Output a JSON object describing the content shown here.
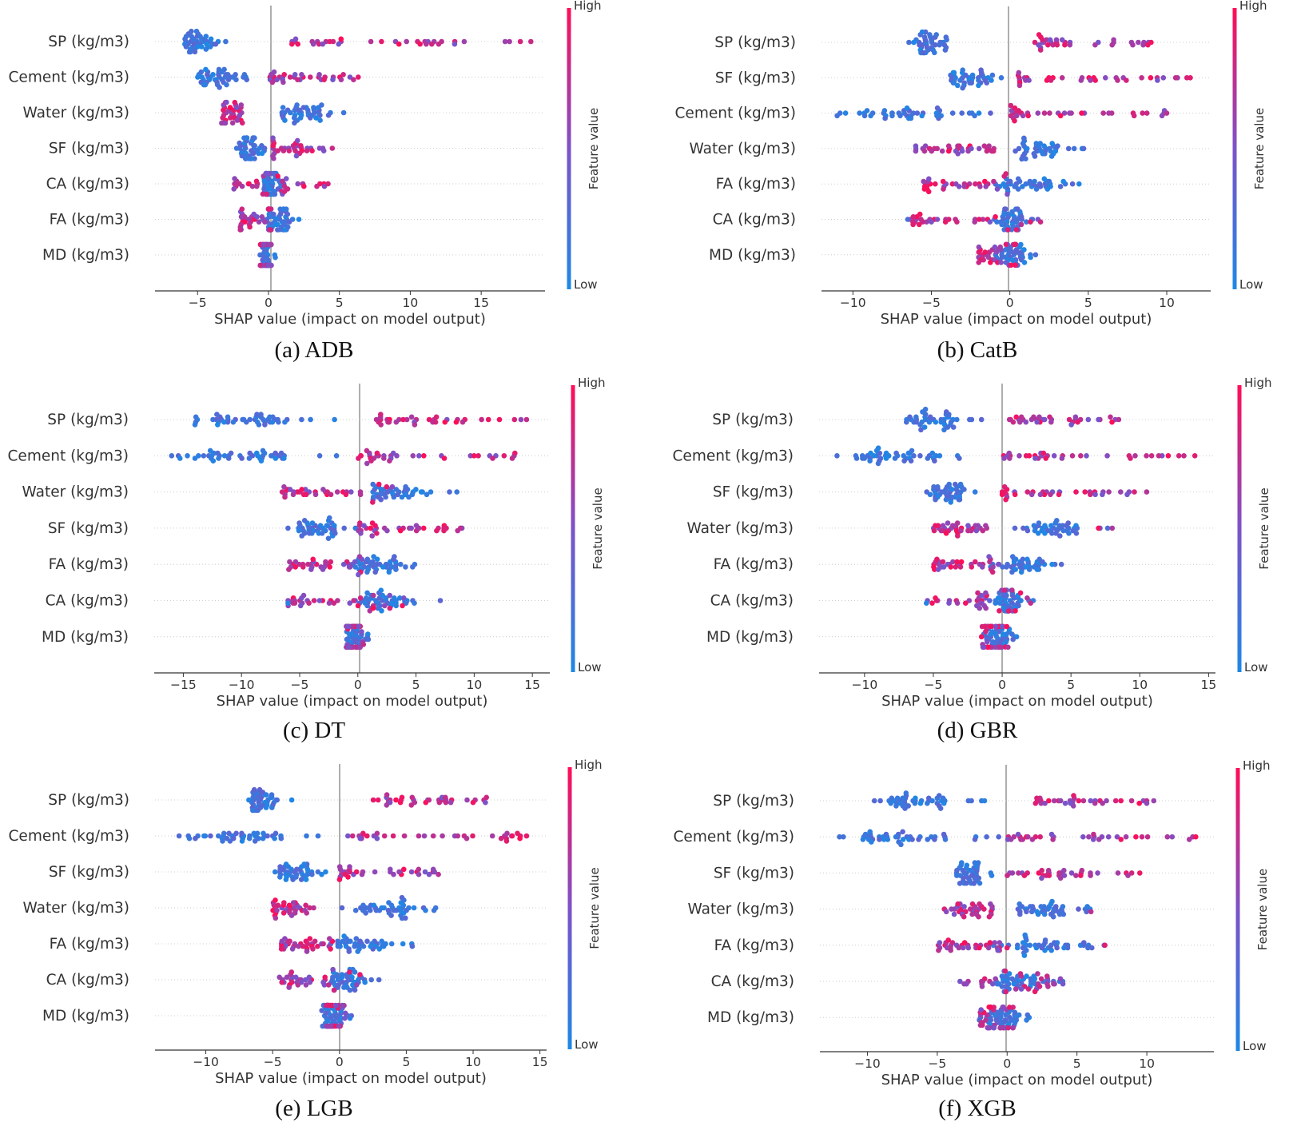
{
  "figure": {
    "colorbar": {
      "high_label": "High",
      "low_label": "Low",
      "title": "Feature value",
      "color_low": "#1e88e5",
      "color_mid": "#7c52c9",
      "color_high": "#ff0d57"
    }
  },
  "chart_data": [
    {
      "type": "scatter",
      "subtype": "shap-beeswarm",
      "caption": "(a) ADB",
      "xlabel": "SHAP value (impact on model output)",
      "xlim": [
        -8,
        19.5
      ],
      "xticks": [
        -5,
        0,
        5,
        10,
        15
      ],
      "tick_labels": [
        "−5",
        "0",
        "5",
        "10",
        "15"
      ],
      "features": [
        {
          "name": "SP (kg/m3)",
          "low_cluster": [
            -6.5,
            -3.0
          ],
          "high_range": [
            1,
            18.5
          ],
          "outliers": [
            17,
            18.5,
            12
          ]
        },
        {
          "name": "Cement (kg/m3)",
          "low_cluster": [
            -5.5,
            -1.5
          ],
          "high_range": [
            0,
            6.5
          ],
          "outliers": [
            6
          ]
        },
        {
          "name": "Water (kg/m3)",
          "low_cluster": [
            0.3,
            5.5
          ],
          "high_range": [
            -3.3,
            -1.7
          ],
          "outliers": []
        },
        {
          "name": "SF (kg/m3)",
          "low_cluster": [
            -2.5,
            -0.2
          ],
          "high_range": [
            0.3,
            4.5
          ],
          "outliers": [
            4.5
          ]
        },
        {
          "name": "CA (kg/m3)",
          "low_cluster": [
            -0.5,
            1.0
          ],
          "high_range": [
            -2.5,
            4.2
          ],
          "outliers": [
            4.2
          ]
        },
        {
          "name": "FA (kg/m3)",
          "low_cluster": [
            -0.5,
            2.5
          ],
          "high_range": [
            -2.0,
            0.3
          ],
          "outliers": []
        },
        {
          "name": "MD (kg/m3)",
          "low_cluster": [
            -0.6,
            0.5
          ],
          "high_range": [
            -0.6,
            0.2
          ],
          "outliers": []
        }
      ]
    },
    {
      "type": "scatter",
      "subtype": "shap-beeswarm",
      "caption": "(b) CatB",
      "xlabel": "SHAP value (impact on model output)",
      "xlim": [
        -12,
        12.8
      ],
      "xticks": [
        -10,
        -5,
        0,
        5,
        10
      ],
      "tick_labels": [
        "−10",
        "−5",
        "0",
        "5",
        "10"
      ],
      "features": [
        {
          "name": "SP (kg/m3)",
          "low_cluster": [
            -6.5,
            -3.5
          ],
          "high_range": [
            1.5,
            9
          ],
          "outliers": [
            9
          ]
        },
        {
          "name": "SF (kg/m3)",
          "low_cluster": [
            -4.3,
            -0.5
          ],
          "high_range": [
            0.5,
            11.5
          ],
          "outliers": [
            11.5
          ]
        },
        {
          "name": "Cement (kg/m3)",
          "low_cluster": [
            -11,
            -0.5
          ],
          "high_range": [
            0,
            10
          ],
          "outliers": [
            -11,
            -7.5,
            10
          ]
        },
        {
          "name": "Water (kg/m3)",
          "low_cluster": [
            0,
            4.8
          ],
          "high_range": [
            -6,
            -1
          ],
          "outliers": []
        },
        {
          "name": "FA (kg/m3)",
          "low_cluster": [
            -1,
            4.5
          ],
          "high_range": [
            -5.5,
            0
          ],
          "outliers": []
        },
        {
          "name": "CA (kg/m3)",
          "low_cluster": [
            -1,
            1.5
          ],
          "high_range": [
            -6.5,
            3.2
          ],
          "outliers": [
            -6.5
          ]
        },
        {
          "name": "MD (kg/m3)",
          "low_cluster": [
            -1,
            1.7
          ],
          "high_range": [
            -2,
            0.5
          ],
          "outliers": []
        }
      ]
    },
    {
      "type": "scatter",
      "subtype": "shap-beeswarm",
      "caption": "(c) DT",
      "xlabel": "SHAP value (impact on model output)",
      "xlim": [
        -17.5,
        16.5
      ],
      "xticks": [
        -15,
        -10,
        -5,
        0,
        5,
        10,
        15
      ],
      "tick_labels": [
        "−15",
        "−10",
        "−5",
        "0",
        "5",
        "10",
        "15"
      ],
      "features": [
        {
          "name": "SP (kg/m3)",
          "low_cluster": [
            -14,
            -2
          ],
          "high_range": [
            1.5,
            14.5
          ],
          "outliers": [
            -14,
            -11.5,
            14.5
          ]
        },
        {
          "name": "Cement (kg/m3)",
          "low_cluster": [
            -16,
            -1
          ],
          "high_range": [
            0,
            13.5
          ],
          "outliers": [
            -16,
            -14,
            13.5
          ]
        },
        {
          "name": "Water (kg/m3)",
          "low_cluster": [
            0,
            9
          ],
          "high_range": [
            -6.5,
            3
          ],
          "outliers": []
        },
        {
          "name": "SF (kg/m3)",
          "low_cluster": [
            -6,
            0
          ],
          "high_range": [
            0,
            9
          ],
          "outliers": [
            -6
          ]
        },
        {
          "name": "FA (kg/m3)",
          "low_cluster": [
            -1,
            5.5
          ],
          "high_range": [
            -6,
            0.5
          ],
          "outliers": []
        },
        {
          "name": "CA (kg/m3)",
          "low_cluster": [
            -1,
            7.5
          ],
          "high_range": [
            -6,
            4
          ],
          "outliers": [
            -6
          ]
        },
        {
          "name": "MD (kg/m3)",
          "low_cluster": [
            -1,
            1
          ],
          "high_range": [
            -1,
            0.5
          ],
          "outliers": []
        }
      ]
    },
    {
      "type": "scatter",
      "subtype": "shap-beeswarm",
      "caption": "(d) GBR",
      "xlabel": "SHAP value (impact on model output)",
      "xlim": [
        -13.3,
        15.5
      ],
      "xticks": [
        -10,
        -5,
        0,
        5,
        10,
        15
      ],
      "tick_labels": [
        "−10",
        "−5",
        "0",
        "5",
        "10",
        "15"
      ],
      "features": [
        {
          "name": "SP (kg/m3)",
          "low_cluster": [
            -7,
            -1.5
          ],
          "high_range": [
            0.5,
            8.5
          ],
          "outliers": []
        },
        {
          "name": "Cement (kg/m3)",
          "low_cluster": [
            -12,
            -0.5
          ],
          "high_range": [
            0,
            14
          ],
          "outliers": [
            -12,
            -9,
            14
          ]
        },
        {
          "name": "SF (kg/m3)",
          "low_cluster": [
            -5.5,
            -1.5
          ],
          "high_range": [
            0,
            10.5
          ],
          "outliers": [
            10.5
          ]
        },
        {
          "name": "Water (kg/m3)",
          "low_cluster": [
            0.5,
            8
          ],
          "high_range": [
            -5,
            -1
          ],
          "outliers": [
            7,
            8
          ]
        },
        {
          "name": "FA (kg/m3)",
          "low_cluster": [
            -1,
            4.5
          ],
          "high_range": [
            -5,
            0
          ],
          "outliers": []
        },
        {
          "name": "CA (kg/m3)",
          "low_cluster": [
            -1,
            2.5
          ],
          "high_range": [
            -5.5,
            2.5
          ],
          "outliers": [
            -5.5
          ]
        },
        {
          "name": "MD (kg/m3)",
          "low_cluster": [
            -1.5,
            1.5
          ],
          "high_range": [
            -1.5,
            0.5
          ],
          "outliers": []
        }
      ]
    },
    {
      "type": "scatter",
      "subtype": "shap-beeswarm",
      "caption": "(e) LGB",
      "xlabel": "SHAP value (impact on model output)",
      "xlim": [
        -13.8,
        15.5
      ],
      "xticks": [
        -10,
        -5,
        0,
        5,
        10,
        15
      ],
      "tick_labels": [
        "−10",
        "−5",
        "0",
        "5",
        "10",
        "15"
      ],
      "features": [
        {
          "name": "SP (kg/m3)",
          "low_cluster": [
            -7,
            -3.5
          ],
          "high_range": [
            2.5,
            11
          ],
          "outliers": [
            11
          ]
        },
        {
          "name": "Cement (kg/m3)",
          "low_cluster": [
            -12,
            -1
          ],
          "high_range": [
            0,
            14
          ],
          "outliers": [
            -12,
            14
          ]
        },
        {
          "name": "SF (kg/m3)",
          "low_cluster": [
            -5,
            -1
          ],
          "high_range": [
            0,
            7.5
          ],
          "outliers": []
        },
        {
          "name": "Water (kg/m3)",
          "low_cluster": [
            0,
            7.5
          ],
          "high_range": [
            -5,
            -1.5
          ],
          "outliers": []
        },
        {
          "name": "FA (kg/m3)",
          "low_cluster": [
            -1,
            5.5
          ],
          "high_range": [
            -4.5,
            0
          ],
          "outliers": []
        },
        {
          "name": "CA (kg/m3)",
          "low_cluster": [
            -1,
            3
          ],
          "high_range": [
            -4.5,
            2
          ],
          "outliers": []
        },
        {
          "name": "MD (kg/m3)",
          "low_cluster": [
            -1.5,
            1
          ],
          "high_range": [
            -1,
            0.5
          ],
          "outliers": []
        }
      ]
    },
    {
      "type": "scatter",
      "subtype": "shap-beeswarm",
      "caption": "(f) XGB",
      "xlabel": "SHAP value (impact on model output)",
      "xlim": [
        -13.4,
        14.8
      ],
      "xticks": [
        -10,
        -5,
        0,
        5,
        10
      ],
      "tick_labels": [
        "−10",
        "−5",
        "0",
        "5",
        "10"
      ],
      "features": [
        {
          "name": "SP (kg/m3)",
          "low_cluster": [
            -9.5,
            -1.5
          ],
          "high_range": [
            2,
            10.5
          ],
          "outliers": [
            -9.5,
            10.5
          ]
        },
        {
          "name": "Cement (kg/m3)",
          "low_cluster": [
            -12,
            -0.5
          ],
          "high_range": [
            0,
            13.5
          ],
          "outliers": [
            -12,
            13.5
          ]
        },
        {
          "name": "SF (kg/m3)",
          "low_cluster": [
            -4,
            -1
          ],
          "high_range": [
            0,
            9.5
          ],
          "outliers": [
            9.5
          ]
        },
        {
          "name": "Water (kg/m3)",
          "low_cluster": [
            0,
            6
          ],
          "high_range": [
            -4.5,
            -1
          ],
          "outliers": [
            6
          ]
        },
        {
          "name": "FA (kg/m3)",
          "low_cluster": [
            -1,
            7
          ],
          "high_range": [
            -5,
            0
          ],
          "outliers": [
            7
          ]
        },
        {
          "name": "CA (kg/m3)",
          "low_cluster": [
            -1,
            4
          ],
          "high_range": [
            -3.5,
            4
          ],
          "outliers": []
        },
        {
          "name": "MD (kg/m3)",
          "low_cluster": [
            -2,
            2
          ],
          "high_range": [
            -2,
            0.5
          ],
          "outliers": []
        }
      ]
    }
  ]
}
